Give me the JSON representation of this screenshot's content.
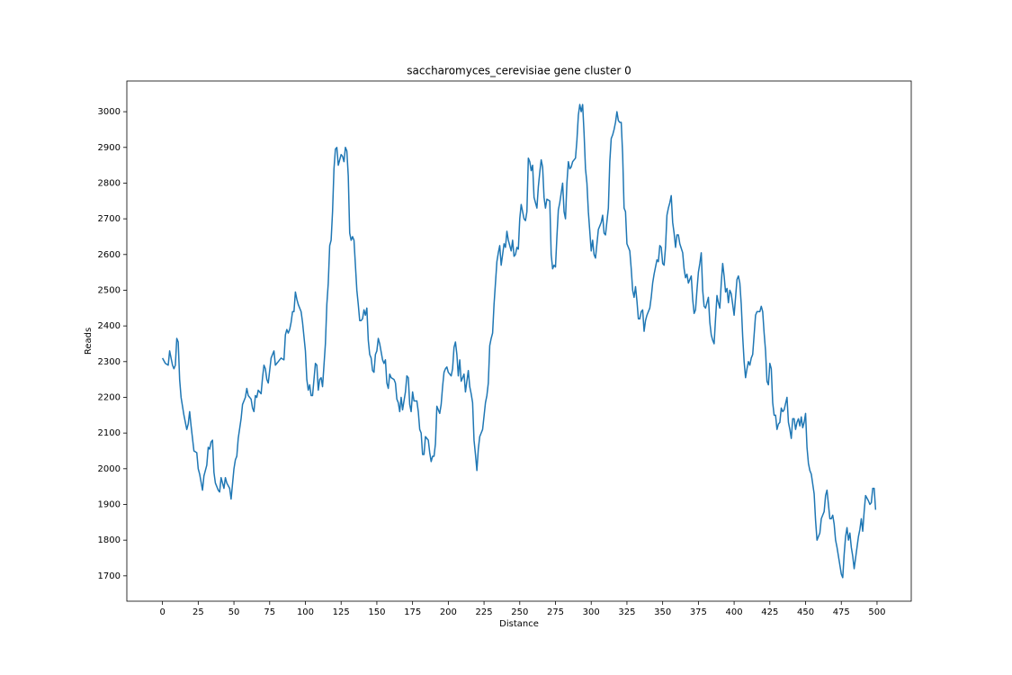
{
  "chart_data": {
    "type": "line",
    "title": "saccharomyces_cerevisiae gene cluster 0",
    "x_label": "Distance",
    "y_label": "Reads",
    "xlim": [
      -24.95,
      523.95
    ],
    "ylim": [
      1629,
      3086
    ],
    "xticks": [
      0,
      25,
      50,
      75,
      100,
      125,
      150,
      175,
      200,
      225,
      250,
      275,
      300,
      325,
      350,
      375,
      400,
      425,
      450,
      475,
      500
    ],
    "yticks": [
      1700,
      1800,
      1900,
      2000,
      2100,
      2200,
      2300,
      2400,
      2500,
      2600,
      2700,
      2800,
      2900,
      3000
    ],
    "grid": false,
    "x": [
      0,
      2,
      4,
      5,
      7,
      8,
      9,
      10,
      11,
      12,
      13,
      15,
      17,
      18,
      19,
      20,
      22,
      24,
      25,
      26,
      28,
      29,
      31,
      32,
      33,
      34,
      35,
      36,
      37,
      39,
      40,
      41,
      42,
      43,
      44,
      45,
      47,
      48,
      50,
      51,
      52,
      53,
      55,
      56,
      58,
      59,
      60,
      62,
      63,
      64,
      65,
      66,
      67,
      69,
      70,
      71,
      72,
      73,
      74,
      76,
      78,
      79,
      81,
      83,
      85,
      86,
      87,
      88,
      89,
      90,
      91,
      92,
      93,
      94,
      95,
      97,
      98,
      100,
      101,
      102,
      103,
      104,
      105,
      106,
      107,
      108,
      109,
      110,
      111,
      112,
      113,
      114,
      115,
      116,
      117,
      118,
      119,
      120,
      121,
      122,
      123,
      124,
      125,
      126,
      127,
      128,
      129,
      130,
      131,
      132,
      133,
      134,
      136,
      137,
      138,
      139,
      140,
      141,
      142,
      143,
      144,
      145,
      146,
      147,
      148,
      149,
      150,
      151,
      152,
      154,
      155,
      156,
      157,
      158,
      159,
      160,
      162,
      163,
      164,
      165,
      166,
      167,
      168,
      170,
      171,
      172,
      173,
      174,
      175,
      176,
      178,
      179,
      180,
      181,
      182,
      183,
      184,
      186,
      187,
      188,
      189,
      190,
      191,
      192,
      194,
      195,
      196,
      197,
      198,
      199,
      200,
      202,
      203,
      204,
      205,
      206,
      207,
      208,
      209,
      210,
      211,
      212,
      214,
      215,
      216,
      217,
      218,
      219,
      220,
      221,
      222,
      223,
      224,
      226,
      227,
      228,
      229,
      230,
      231,
      232,
      234,
      235,
      236,
      237,
      238,
      239,
      240,
      241,
      242,
      244,
      245,
      246,
      247,
      248,
      249,
      250,
      251,
      253,
      254,
      255,
      256,
      257,
      258,
      259,
      260,
      262,
      263,
      264,
      265,
      266,
      267,
      268,
      269,
      271,
      272,
      273,
      274,
      275,
      276,
      277,
      278,
      280,
      281,
      282,
      283,
      284,
      285,
      286,
      287,
      289,
      290,
      291,
      292,
      293,
      294,
      295,
      296,
      297,
      298,
      300,
      301,
      302,
      303,
      304,
      305,
      306,
      307,
      308,
      309,
      310,
      312,
      313,
      314,
      315,
      316,
      317,
      318,
      319,
      320,
      321,
      322,
      323,
      324,
      325,
      327,
      328,
      329,
      330,
      331,
      332,
      333,
      334,
      335,
      336,
      337,
      338,
      339,
      340,
      341,
      342,
      343,
      344,
      346,
      347,
      348,
      349,
      350,
      351,
      352,
      353,
      354,
      355,
      356,
      357,
      358,
      359,
      360,
      361,
      362,
      364,
      365,
      366,
      367,
      368,
      369,
      370,
      371,
      372,
      373,
      374,
      375,
      376,
      377,
      378,
      379,
      380,
      382,
      383,
      384,
      385,
      386,
      387,
      388,
      389,
      390,
      391,
      392,
      393,
      394,
      395,
      396,
      397,
      398,
      400,
      401,
      402,
      403,
      404,
      405,
      406,
      407,
      408,
      409,
      410,
      411,
      412,
      413,
      414,
      415,
      416,
      418,
      419,
      420,
      421,
      422,
      423,
      424,
      425,
      426,
      427,
      428,
      429,
      430,
      431,
      432,
      433,
      434,
      435,
      437,
      438,
      439,
      440,
      441,
      442,
      443,
      444,
      445,
      446,
      447,
      448,
      449,
      450,
      451,
      452,
      453,
      454,
      456,
      457,
      458,
      459,
      460,
      461,
      462,
      463,
      464,
      465,
      466,
      467,
      468,
      469,
      470,
      471,
      472,
      474,
      475,
      476,
      477,
      478,
      479,
      480,
      481,
      482,
      483,
      484,
      485,
      486,
      487,
      488,
      489,
      490,
      491,
      492,
      494,
      495,
      496,
      497,
      498,
      499
    ],
    "series": [
      {
        "name": "Reads",
        "color": "#1f77b4",
        "values": [
          2310,
          2295,
          2290,
          2330,
          2290,
          2280,
          2290,
          2365,
          2355,
          2250,
          2200,
          2150,
          2110,
          2125,
          2160,
          2120,
          2050,
          2045,
          2000,
          1985,
          1940,
          1980,
          2010,
          2060,
          2055,
          2075,
          2080,
          1990,
          1960,
          1940,
          1935,
          1975,
          1960,
          1945,
          1975,
          1960,
          1945,
          1915,
          2000,
          2025,
          2035,
          2085,
          2140,
          2180,
          2200,
          2225,
          2205,
          2195,
          2170,
          2160,
          2205,
          2200,
          2220,
          2210,
          2255,
          2290,
          2280,
          2250,
          2240,
          2310,
          2330,
          2290,
          2300,
          2310,
          2305,
          2375,
          2390,
          2380,
          2390,
          2410,
          2440,
          2440,
          2495,
          2475,
          2460,
          2440,
          2410,
          2330,
          2250,
          2220,
          2235,
          2205,
          2205,
          2250,
          2295,
          2290,
          2220,
          2250,
          2255,
          2230,
          2290,
          2350,
          2460,
          2520,
          2625,
          2640,
          2720,
          2840,
          2895,
          2900,
          2850,
          2865,
          2880,
          2875,
          2860,
          2900,
          2890,
          2820,
          2660,
          2640,
          2650,
          2640,
          2500,
          2460,
          2415,
          2415,
          2420,
          2445,
          2430,
          2450,
          2360,
          2320,
          2310,
          2275,
          2270,
          2320,
          2330,
          2365,
          2350,
          2305,
          2295,
          2305,
          2240,
          2225,
          2265,
          2255,
          2250,
          2240,
          2195,
          2185,
          2160,
          2200,
          2165,
          2215,
          2260,
          2255,
          2180,
          2160,
          2215,
          2190,
          2190,
          2160,
          2110,
          2100,
          2040,
          2040,
          2090,
          2080,
          2045,
          2020,
          2035,
          2035,
          2070,
          2175,
          2155,
          2180,
          2230,
          2270,
          2280,
          2285,
          2270,
          2260,
          2280,
          2340,
          2355,
          2320,
          2260,
          2305,
          2245,
          2255,
          2265,
          2215,
          2275,
          2230,
          2210,
          2185,
          2080,
          2040,
          1995,
          2055,
          2090,
          2100,
          2110,
          2185,
          2205,
          2240,
          2345,
          2365,
          2380,
          2460,
          2580,
          2605,
          2625,
          2570,
          2600,
          2630,
          2620,
          2665,
          2640,
          2610,
          2640,
          2595,
          2600,
          2620,
          2615,
          2700,
          2740,
          2700,
          2695,
          2720,
          2870,
          2860,
          2835,
          2850,
          2760,
          2730,
          2790,
          2830,
          2865,
          2845,
          2760,
          2730,
          2755,
          2750,
          2600,
          2560,
          2570,
          2565,
          2650,
          2725,
          2745,
          2800,
          2720,
          2700,
          2800,
          2860,
          2840,
          2845,
          2860,
          2870,
          2920,
          2990,
          3020,
          3000,
          3020,
          2940,
          2840,
          2800,
          2720,
          2610,
          2640,
          2600,
          2590,
          2630,
          2670,
          2680,
          2690,
          2710,
          2660,
          2655,
          2730,
          2860,
          2925,
          2935,
          2950,
          2970,
          3000,
          2975,
          2970,
          2970,
          2880,
          2730,
          2720,
          2630,
          2610,
          2560,
          2500,
          2480,
          2510,
          2470,
          2420,
          2420,
          2440,
          2445,
          2385,
          2415,
          2430,
          2440,
          2450,
          2480,
          2520,
          2545,
          2585,
          2580,
          2625,
          2620,
          2575,
          2570,
          2620,
          2710,
          2730,
          2745,
          2765,
          2690,
          2660,
          2620,
          2655,
          2655,
          2630,
          2605,
          2560,
          2535,
          2545,
          2520,
          2530,
          2540,
          2475,
          2435,
          2445,
          2500,
          2550,
          2575,
          2605,
          2500,
          2455,
          2450,
          2480,
          2410,
          2375,
          2360,
          2350,
          2420,
          2485,
          2465,
          2450,
          2520,
          2575,
          2540,
          2495,
          2505,
          2465,
          2500,
          2490,
          2430,
          2480,
          2530,
          2540,
          2520,
          2460,
          2370,
          2300,
          2255,
          2280,
          2300,
          2290,
          2310,
          2320,
          2375,
          2430,
          2440,
          2440,
          2455,
          2440,
          2380,
          2330,
          2245,
          2235,
          2295,
          2280,
          2185,
          2150,
          2150,
          2110,
          2125,
          2130,
          2170,
          2160,
          2165,
          2200,
          2130,
          2110,
          2085,
          2140,
          2140,
          2110,
          2130,
          2140,
          2120,
          2145,
          2115,
          2130,
          2155,
          2060,
          2015,
          1995,
          1985,
          1930,
          1855,
          1800,
          1810,
          1820,
          1860,
          1870,
          1880,
          1925,
          1940,
          1900,
          1860,
          1860,
          1870,
          1845,
          1800,
          1780,
          1730,
          1705,
          1695,
          1760,
          1810,
          1835,
          1800,
          1820,
          1780,
          1755,
          1720,
          1750,
          1780,
          1810,
          1830,
          1860,
          1825,
          1880,
          1925,
          1910,
          1900,
          1905,
          1945,
          1945,
          1885
        ]
      }
    ]
  }
}
